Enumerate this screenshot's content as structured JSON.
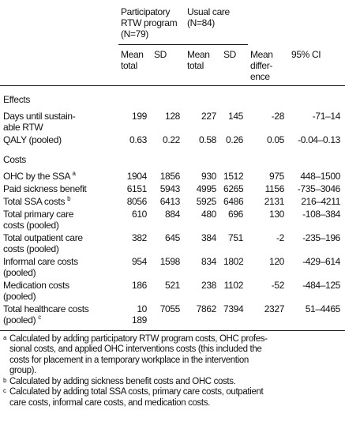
{
  "table": {
    "groups": [
      "Participatory\nRTW program\n(N=79)",
      "Usual care\n(N=84)"
    ],
    "subheaders": [
      "Mean\ntotal",
      "SD",
      "Mean\ntotal",
      "SD",
      "Mean\ndiffer-\nence",
      "95% CI"
    ],
    "sections": [
      {
        "title": "Effects",
        "rows": [
          {
            "label": "Days until sustain-\nable RTW",
            "cells": [
              "199",
              "128",
              "227",
              "145",
              "-28",
              "-71–14"
            ]
          },
          {
            "label": "QALY (pooled)",
            "cells": [
              "0.63",
              "0.22",
              "0.58",
              "0.26",
              "0.05",
              "-0.04–0.13"
            ]
          }
        ]
      },
      {
        "title": "Costs",
        "rows": [
          {
            "label": "OHC by the SSA",
            "note": "a",
            "cells": [
              "1904",
              "1856",
              "930",
              "1512",
              "975",
              "448–1500"
            ]
          },
          {
            "label": "Paid sickness benefit",
            "cells": [
              "6151",
              "5943",
              "4995",
              "6265",
              "1156",
              "-735–3046"
            ]
          },
          {
            "label": "Total SSA costs",
            "note": "b",
            "cells": [
              "8056",
              "6413",
              "5925",
              "6486",
              "2131",
              "216–4211"
            ]
          },
          {
            "label": "Total primary care\ncosts (pooled)",
            "cells": [
              "610",
              "884",
              "480",
              "696",
              "130",
              "-108–384"
            ]
          },
          {
            "label": "Total outpatient care\ncosts (pooled)",
            "cells": [
              "382",
              "645",
              "384",
              "751",
              "-2",
              "-235–196"
            ]
          },
          {
            "label": "Informal care costs\n(pooled)",
            "cells": [
              "954",
              "1598",
              "834",
              "1802",
              "120",
              "-429–614"
            ]
          },
          {
            "label": "Medication costs\n(pooled)",
            "cells": [
              "186",
              "521",
              "238",
              "1102",
              "-52",
              "-484–125"
            ]
          },
          {
            "label": "Total healthcare costs\n(pooled)",
            "note": "c",
            "cells": [
              "10 189",
              "7055",
              "7862",
              "7394",
              "2327",
              "51–4465"
            ]
          }
        ]
      }
    ],
    "footnotes": [
      {
        "mark": "a",
        "text": "Calculated by adding participatory RTW program costs, OHC profes-\nsional costs, and applied OHC interventions costs (this included the\ncosts for placement in a temporary workplace in the intervention\ngroup)."
      },
      {
        "mark": "b",
        "text": "Calculated by adding sickness benefit costs and OHC costs."
      },
      {
        "mark": "c",
        "text": "Calculated by adding total SSA costs, primary care costs, outpatient\ncare costs, informal care costs, and medication costs."
      }
    ]
  }
}
